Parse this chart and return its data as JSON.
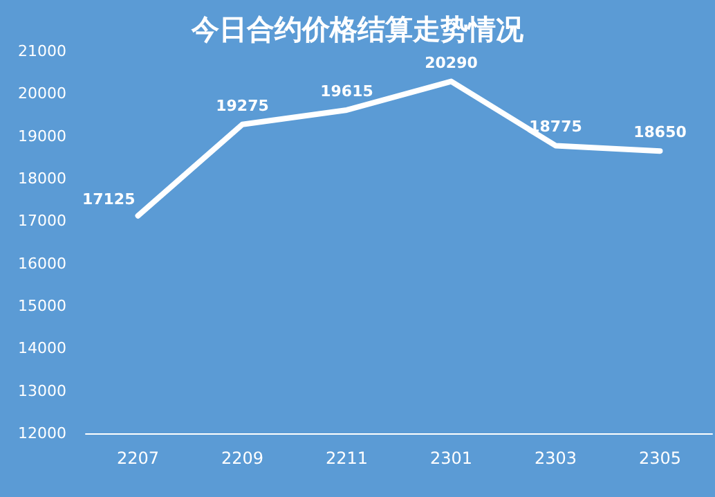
{
  "chart_data": {
    "type": "line",
    "title": "今日合约价格结算走势情况",
    "categories": [
      "2207",
      "2209",
      "2211",
      "2301",
      "2303",
      "2305"
    ],
    "series": [
      {
        "color": "#ffffff",
        "values": [
          17125,
          19275,
          19615,
          20290,
          18775,
          18650
        ]
      }
    ],
    "ylim": [
      12000,
      21000
    ],
    "yticks": [
      12000,
      13000,
      14000,
      15000,
      16000,
      17000,
      18000,
      19000,
      20000,
      21000
    ],
    "grid": false,
    "data_labels": true,
    "marker": "none",
    "line_style": "solid"
  }
}
